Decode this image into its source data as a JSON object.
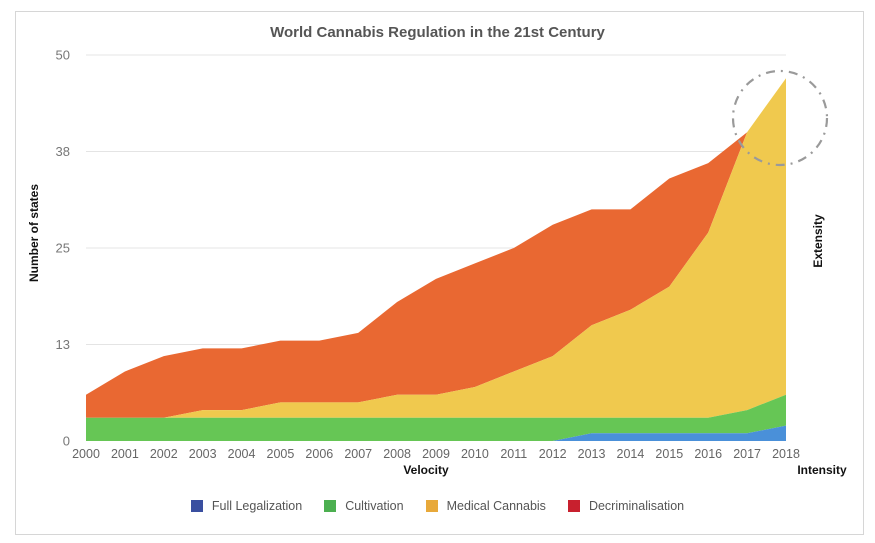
{
  "chart_data": {
    "type": "area",
    "stacked": true,
    "title": "World Cannabis Regulation in the 21st Century",
    "xlabel": "Velocity",
    "ylabel": "Number of states",
    "right_label": "Extensity",
    "corner_label": "Intensity",
    "x": [
      "2000",
      "2001",
      "2002",
      "2003",
      "2004",
      "2005",
      "2006",
      "2007",
      "2008",
      "2009",
      "2010",
      "2011",
      "2012",
      "2013",
      "2014",
      "2015",
      "2016",
      "2017",
      "2018"
    ],
    "ylim": [
      0,
      50
    ],
    "yticks": [
      "0",
      "13",
      "25",
      "38",
      "50"
    ],
    "ytick_values": [
      0,
      12.5,
      25,
      37.5,
      50
    ],
    "grid": true,
    "legend_position": "bottom",
    "annotation": "dashed circle highlighting 2017-2018 peak",
    "series": [
      {
        "name": "Full Legalization",
        "legend_color": "#3a4fa0",
        "fill_color": "#4a90d9",
        "values": [
          0,
          0,
          0,
          0,
          0,
          0,
          0,
          0,
          0,
          0,
          0,
          0,
          0,
          1,
          1,
          1,
          1,
          1,
          2
        ]
      },
      {
        "name": "Cultivation",
        "legend_color": "#4caf50",
        "fill_color": "#66c655",
        "values": [
          3,
          3,
          3,
          3,
          3,
          3,
          3,
          3,
          3,
          3,
          3,
          3,
          3,
          2,
          2,
          2,
          2,
          3,
          4
        ]
      },
      {
        "name": "Medical Cannabis",
        "legend_color": "#e8a93a",
        "fill_color": "#f0c94e",
        "values": [
          0,
          0,
          0,
          1,
          1,
          2,
          2,
          2,
          3,
          3,
          4,
          6,
          8,
          12,
          14,
          17,
          24,
          36,
          41
        ]
      },
      {
        "name": "Decriminalisation",
        "legend_color": "#c8202e",
        "fill_color": "#e96832",
        "values": [
          3,
          6,
          8,
          8,
          8,
          8,
          8,
          9,
          12,
          15,
          16,
          16,
          17,
          15,
          13,
          14,
          9,
          0,
          0
        ]
      }
    ]
  }
}
